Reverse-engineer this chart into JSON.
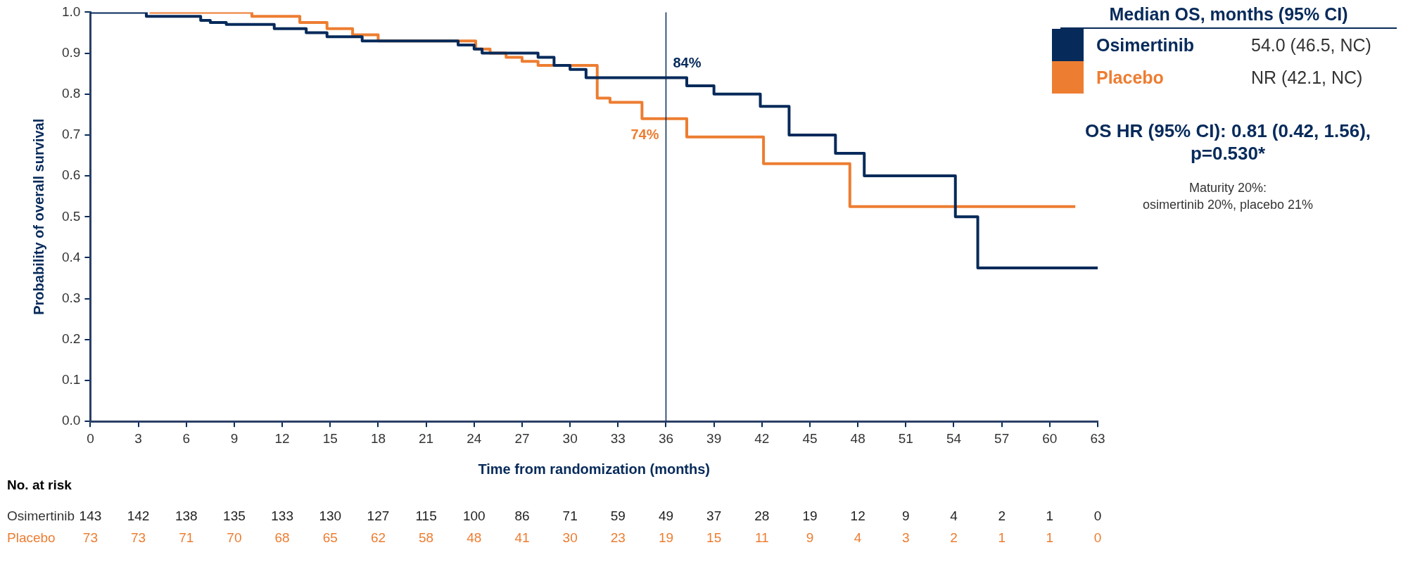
{
  "chart_data": {
    "type": "step",
    "xlabel": "Time from randomization (months)",
    "ylabel": "Probability of overall survival",
    "legend_title": "Median OS, months (95% CI)",
    "legend": "top right",
    "grid": false,
    "marker": "none",
    "line_style": "solid",
    "xlim": [
      0,
      63
    ],
    "xticks": [
      0,
      3,
      6,
      9,
      12,
      15,
      18,
      21,
      24,
      27,
      30,
      33,
      36,
      39,
      42,
      45,
      48,
      51,
      54,
      57,
      60,
      63
    ],
    "ylim": [
      0,
      1
    ],
    "yticks": [
      {
        "value": 0,
        "label": "0.0"
      },
      {
        "value": 0.1,
        "label": "0.1"
      },
      {
        "value": 0.2,
        "label": "0.2"
      },
      {
        "value": 0.3,
        "label": "0.3"
      },
      {
        "value": 0.4,
        "label": "0.4"
      },
      {
        "value": 0.5,
        "label": "0.5"
      },
      {
        "value": 0.6,
        "label": "0.6"
      },
      {
        "value": 0.7,
        "label": "0.7"
      },
      {
        "value": 0.8,
        "label": "0.8"
      },
      {
        "value": 0.9,
        "label": "0.9"
      },
      {
        "value": 1,
        "label": "1.0"
      }
    ],
    "series": [
      {
        "name": "Osimertinib",
        "color": "#062a5a",
        "x": [
          0,
          3.5,
          6.9,
          7.5,
          8.5,
          11.5,
          13.5,
          14.8,
          17,
          23,
          24,
          24.5,
          28,
          29,
          30,
          31,
          37.3,
          39,
          41.9,
          43.7,
          46.6,
          48.4,
          54.1,
          55.5,
          63
        ],
        "values": [
          1.0,
          0.99,
          0.98,
          0.975,
          0.97,
          0.96,
          0.95,
          0.94,
          0.93,
          0.92,
          0.91,
          0.9,
          0.89,
          0.87,
          0.86,
          0.84,
          0.82,
          0.8,
          0.77,
          0.7,
          0.655,
          0.6,
          0.5,
          0.375,
          0.375
        ]
      },
      {
        "name": "Placebo",
        "color": "#ed7d31",
        "x": [
          3.7,
          10.1,
          13.1,
          14.8,
          16.4,
          18,
          24.1,
          25,
          26,
          27,
          28,
          31.7,
          32.5,
          34.5,
          37.3,
          42.1,
          47.5,
          61.6
        ],
        "values": [
          1.0,
          0.99,
          0.975,
          0.96,
          0.945,
          0.93,
          0.91,
          0.9,
          0.89,
          0.88,
          0.87,
          0.79,
          0.78,
          0.74,
          0.695,
          0.63,
          0.525,
          0.525
        ]
      }
    ],
    "ref_lines": [
      {
        "axis": "x",
        "value": 36,
        "color": "#062a5a"
      }
    ],
    "annotations": [
      {
        "text": "84%",
        "x": 36,
        "y": 0.84
      },
      {
        "text": "74%",
        "x": 36,
        "y": 0.74
      },
      "54.0 (46.5, NC)",
      "NR (42.1, NC)",
      "OS HR (95% CI): 0.81 (0.42, 1.56), p=0.530*",
      "Maturity 20%:",
      "osimertinib 20%, placebo 21%",
      "No. at risk",
      "143",
      "142",
      "138",
      "135",
      "133",
      "130",
      "127",
      "115",
      "100",
      "86",
      "71",
      "59",
      "49",
      "37",
      "28",
      "19",
      "12",
      "9",
      "4",
      "2",
      "1",
      "0",
      "73",
      "73",
      "71",
      "70",
      "68",
      "65",
      "62",
      "58",
      "48",
      "41",
      "30",
      "23",
      "19",
      "15",
      "11",
      "9",
      "4",
      "3",
      "2",
      "1",
      "1",
      "0"
    ]
  }
}
